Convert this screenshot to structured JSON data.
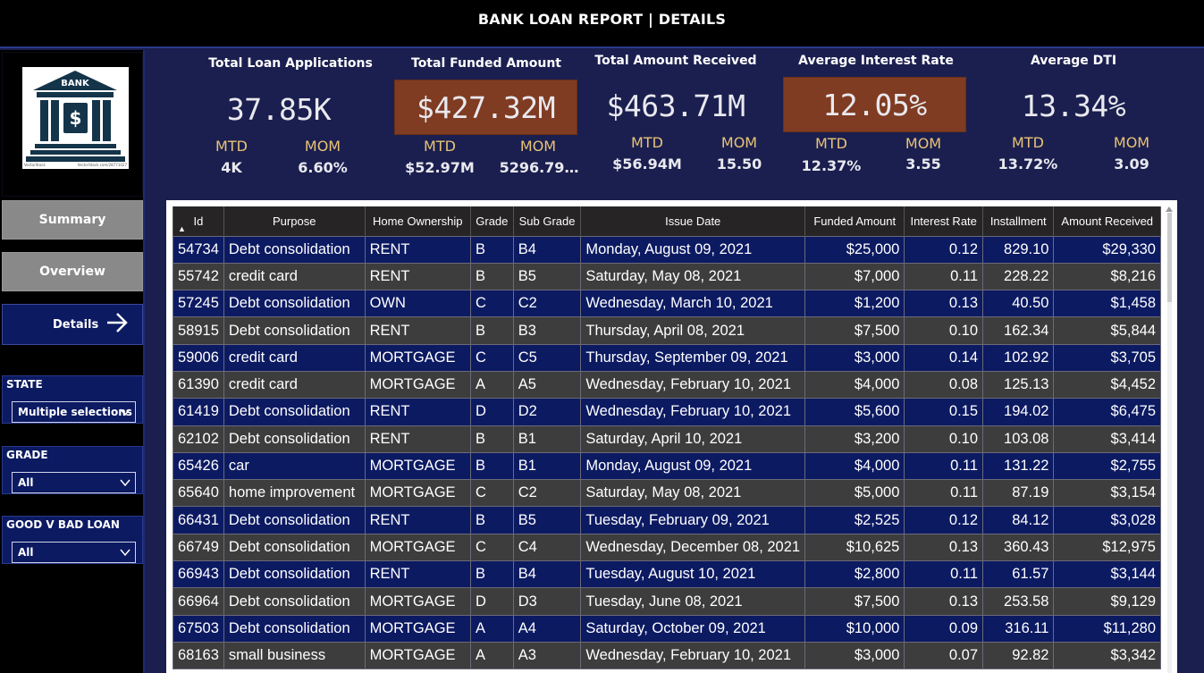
{
  "header": {
    "title": "BANK LOAN REPORT | DETAILS"
  },
  "sidebar": {
    "logo": {
      "label": "BANK",
      "symbol": "$",
      "credit_left": "VectorStock",
      "credit_right": "VectorStock.com/28771027"
    },
    "nav": {
      "summary": "Summary",
      "overview": "Overview",
      "details": "Details"
    },
    "slicers": [
      {
        "label": "STATE",
        "value": "Multiple selections"
      },
      {
        "label": "GRADE",
        "value": "All"
      },
      {
        "label": "GOOD V BAD LOAN",
        "value": "All"
      }
    ]
  },
  "kpis": [
    {
      "title": "Total Loan Applications",
      "value": "37.85K",
      "mtd_label": "MTD",
      "mtd": "4K",
      "mom_label": "MOM",
      "mom": "6.60%",
      "highlight": false
    },
    {
      "title": "Total Funded Amount",
      "value": "$427.32M",
      "mtd_label": "MTD",
      "mtd": "$52.97M",
      "mom_label": "MOM",
      "mom": "5296.79…",
      "highlight": true
    },
    {
      "title": "Total Amount Received",
      "value": "$463.71M",
      "mtd_label": "MTD",
      "mtd": "$56.94M",
      "mom_label": "MOM",
      "mom": "15.50",
      "highlight": false
    },
    {
      "title": "Average Interest Rate",
      "value": "12.05%",
      "mtd_label": "MTD",
      "mtd": "12.37%",
      "mom_label": "MOM",
      "mom": "3.55",
      "highlight": true
    },
    {
      "title": "Average DTI",
      "value": "13.34%",
      "mtd_label": "MTD",
      "mtd": "13.72%",
      "mom_label": "MOM",
      "mom": "3.09",
      "highlight": false
    }
  ],
  "table": {
    "columns": [
      "Id",
      "Purpose",
      "Home Ownership",
      "Grade",
      "Sub Grade",
      "Issue Date",
      "Funded Amount",
      "Interest Rate",
      "Installment",
      "Amount Received"
    ],
    "rows": [
      [
        "54734",
        "Debt consolidation",
        "RENT",
        "B",
        "B4",
        "Monday, August 09, 2021",
        "$25,000",
        "0.12",
        "829.10",
        "$29,330"
      ],
      [
        "55742",
        "credit card",
        "RENT",
        "B",
        "B5",
        "Saturday, May 08, 2021",
        "$7,000",
        "0.11",
        "228.22",
        "$8,216"
      ],
      [
        "57245",
        "Debt consolidation",
        "OWN",
        "C",
        "C2",
        "Wednesday, March 10, 2021",
        "$1,200",
        "0.13",
        "40.50",
        "$1,458"
      ],
      [
        "58915",
        "Debt consolidation",
        "RENT",
        "B",
        "B3",
        "Thursday, April 08, 2021",
        "$7,500",
        "0.10",
        "162.34",
        "$5,844"
      ],
      [
        "59006",
        "credit card",
        "MORTGAGE",
        "C",
        "C5",
        "Thursday, September 09, 2021",
        "$3,000",
        "0.14",
        "102.92",
        "$3,705"
      ],
      [
        "61390",
        "credit card",
        "MORTGAGE",
        "A",
        "A5",
        "Wednesday, February 10, 2021",
        "$4,000",
        "0.08",
        "125.13",
        "$4,452"
      ],
      [
        "61419",
        "Debt consolidation",
        "RENT",
        "D",
        "D2",
        "Wednesday, February 10, 2021",
        "$5,600",
        "0.15",
        "194.02",
        "$6,475"
      ],
      [
        "62102",
        "Debt consolidation",
        "RENT",
        "B",
        "B1",
        "Saturday, April 10, 2021",
        "$3,200",
        "0.10",
        "103.08",
        "$3,414"
      ],
      [
        "65426",
        "car",
        "MORTGAGE",
        "B",
        "B1",
        "Monday, August 09, 2021",
        "$4,000",
        "0.11",
        "131.22",
        "$2,755"
      ],
      [
        "65640",
        "home improvement",
        "MORTGAGE",
        "C",
        "C2",
        "Saturday, May 08, 2021",
        "$5,000",
        "0.11",
        "87.19",
        "$3,154"
      ],
      [
        "66431",
        "Debt consolidation",
        "RENT",
        "B",
        "B5",
        "Tuesday, February 09, 2021",
        "$2,525",
        "0.12",
        "84.12",
        "$3,028"
      ],
      [
        "66749",
        "Debt consolidation",
        "MORTGAGE",
        "C",
        "C4",
        "Wednesday, December 08, 2021",
        "$10,625",
        "0.13",
        "360.43",
        "$12,975"
      ],
      [
        "66943",
        "Debt consolidation",
        "RENT",
        "B",
        "B4",
        "Tuesday, August 10, 2021",
        "$2,800",
        "0.11",
        "61.57",
        "$3,144"
      ],
      [
        "66964",
        "Debt consolidation",
        "MORTGAGE",
        "D",
        "D3",
        "Tuesday, June 08, 2021",
        "$7,500",
        "0.13",
        "253.58",
        "$9,129"
      ],
      [
        "67503",
        "Debt consolidation",
        "MORTGAGE",
        "A",
        "A4",
        "Saturday, October 09, 2021",
        "$10,000",
        "0.09",
        "316.11",
        "$11,280"
      ],
      [
        "68163",
        "small business",
        "MORTGAGE",
        "A",
        "A3",
        "Wednesday, February 10, 2021",
        "$3,000",
        "0.07",
        "92.82",
        "$3,342"
      ]
    ]
  },
  "colors": {
    "background": "#1b1f4f",
    "row_blue": "#0c1a62",
    "row_gray": "#3d3d3d",
    "highlight": "#7f3c22",
    "accent_label": "#e8c477"
  }
}
